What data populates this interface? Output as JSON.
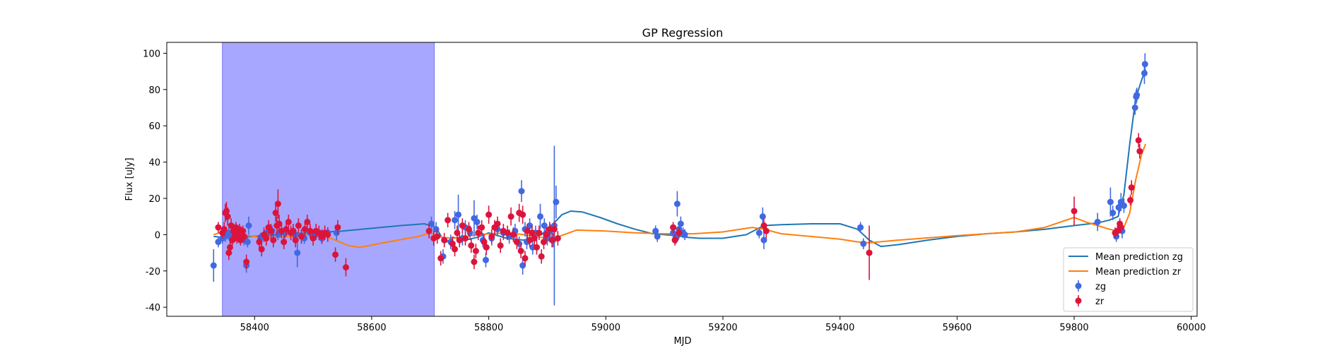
{
  "chart_data": {
    "type": "scatter",
    "title": "GP Regression",
    "xlabel": "MJD",
    "ylabel": "Flux [uJy]",
    "xlim": [
      58250,
      60010
    ],
    "ylim": [
      -45,
      106
    ],
    "xticks": [
      58400,
      58600,
      58800,
      59000,
      59200,
      59400,
      59600,
      59800,
      60000
    ],
    "yticks": [
      -40,
      -20,
      0,
      20,
      40,
      60,
      80,
      100
    ],
    "shaded_span": {
      "x0": 58345,
      "x1": 58707,
      "color": "#a7a7ff"
    },
    "legend_position": "lower right",
    "lines": [
      {
        "name": "Mean prediction zg",
        "color": "#1f77b4",
        "x": [
          58330,
          58345,
          58380,
          58420,
          58460,
          58500,
          58550,
          58600,
          58650,
          58690,
          58710,
          58725,
          58740,
          58760,
          58780,
          58800,
          58830,
          58860,
          58890,
          58910,
          58925,
          58940,
          58960,
          58990,
          59020,
          59050,
          59080,
          59100,
          59120,
          59140,
          59160,
          59200,
          59240,
          59270,
          59300,
          59350,
          59400,
          59430,
          59450,
          59470,
          59500,
          59550,
          59600,
          59650,
          59700,
          59750,
          59800,
          59840,
          59860,
          59875,
          59885,
          59895,
          59905,
          59915,
          59922
        ],
        "y": [
          -1,
          -1.5,
          -1.2,
          -0.5,
          0.5,
          1,
          2,
          3.5,
          5,
          6,
          4,
          -4.5,
          -1.5,
          -3,
          -1.5,
          1,
          -2,
          -3,
          0,
          6,
          11,
          13,
          12.5,
          9.5,
          6,
          3,
          0.5,
          0,
          -0.5,
          -1.5,
          -2,
          -2,
          0,
          5,
          5.5,
          6,
          6,
          3,
          -3,
          -6.5,
          -5.5,
          -3,
          -1,
          0.5,
          1.5,
          3,
          5,
          6.5,
          8,
          10,
          22,
          50,
          75,
          85,
          91
        ]
      },
      {
        "name": "Mean prediction zr",
        "color": "#ff7f0e",
        "x": [
          58330,
          58345,
          58380,
          58420,
          58460,
          58500,
          58530,
          58560,
          58580,
          58620,
          58680,
          58700,
          58720,
          58740,
          58770,
          58800,
          58830,
          58860,
          58900,
          58920,
          58950,
          59000,
          59050,
          59100,
          59150,
          59200,
          59250,
          59270,
          59300,
          59350,
          59400,
          59430,
          59450,
          59500,
          59600,
          59700,
          59750,
          59800,
          59820,
          59840,
          59860,
          59875,
          59885,
          59895,
          59905,
          59915,
          59922
        ],
        "y": [
          0,
          1.5,
          0,
          -2,
          -1,
          0,
          -2,
          -6,
          -7,
          -4.5,
          -1,
          1,
          -1.5,
          -2,
          -0.5,
          0.5,
          1,
          0,
          -2,
          -1,
          2.5,
          2,
          1,
          0.5,
          0.5,
          1.5,
          4,
          3,
          0.5,
          -1,
          -2.5,
          -4,
          -4.5,
          -3,
          -0.5,
          1.5,
          4,
          9.5,
          7,
          5,
          3,
          2,
          4,
          12,
          30,
          44,
          50
        ]
      }
    ],
    "series": [
      {
        "name": "zg",
        "color": "#4169e1",
        "points": [
          [
            58330,
            -17,
            9
          ],
          [
            58338,
            -4,
            3
          ],
          [
            58345,
            -2,
            3
          ],
          [
            58350,
            -1,
            3
          ],
          [
            58356,
            1,
            3
          ],
          [
            58360,
            -2,
            3
          ],
          [
            58366,
            0,
            3
          ],
          [
            58372,
            -1,
            3
          ],
          [
            58378,
            0,
            3
          ],
          [
            58382,
            -3,
            3
          ],
          [
            58386,
            -17,
            4
          ],
          [
            58388,
            -4,
            3
          ],
          [
            58390,
            5,
            5
          ],
          [
            58410,
            -2,
            3
          ],
          [
            58420,
            1,
            3
          ],
          [
            58430,
            2,
            3
          ],
          [
            58440,
            0,
            3
          ],
          [
            58452,
            1,
            3
          ],
          [
            58470,
            0,
            3
          ],
          [
            58473,
            -10,
            8
          ],
          [
            58485,
            -2,
            3
          ],
          [
            58495,
            1,
            3
          ],
          [
            58505,
            0,
            3
          ],
          [
            58515,
            -2,
            3
          ],
          [
            58525,
            1,
            3
          ],
          [
            58540,
            1,
            4
          ],
          [
            58702,
            6,
            4
          ],
          [
            58710,
            3,
            4
          ],
          [
            58722,
            -12,
            4
          ],
          [
            58735,
            -4,
            4
          ],
          [
            58742,
            8,
            5
          ],
          [
            58748,
            11,
            11
          ],
          [
            58755,
            -2,
            4
          ],
          [
            58760,
            4,
            4
          ],
          [
            58768,
            1,
            4
          ],
          [
            58775,
            9,
            10
          ],
          [
            58780,
            7,
            4
          ],
          [
            58790,
            -3,
            4
          ],
          [
            58795,
            -14,
            4
          ],
          [
            58805,
            -2,
            4
          ],
          [
            58815,
            3,
            4
          ],
          [
            58825,
            1,
            4
          ],
          [
            58835,
            -1,
            4
          ],
          [
            58845,
            2,
            4
          ],
          [
            58852,
            -5,
            4
          ],
          [
            58856,
            24,
            6
          ],
          [
            58858,
            -17,
            5
          ],
          [
            58862,
            3,
            4
          ],
          [
            58865,
            -4,
            4
          ],
          [
            58870,
            5,
            4
          ],
          [
            58875,
            -7,
            4
          ],
          [
            58880,
            1,
            4
          ],
          [
            58888,
            10,
            7
          ],
          [
            58895,
            5,
            4
          ],
          [
            58900,
            -2,
            4
          ],
          [
            58905,
            2,
            4
          ],
          [
            58910,
            -3,
            4
          ],
          [
            58912,
            5,
            44
          ],
          [
            58915,
            18,
            9
          ],
          [
            59085,
            2,
            3
          ],
          [
            59088,
            -1,
            3
          ],
          [
            59115,
            1,
            3
          ],
          [
            59120,
            -2,
            3
          ],
          [
            59122,
            17,
            7
          ],
          [
            59125,
            3,
            3
          ],
          [
            59128,
            6,
            4
          ],
          [
            59132,
            1,
            3
          ],
          [
            59135,
            0,
            3
          ],
          [
            59262,
            1,
            3
          ],
          [
            59268,
            10,
            5
          ],
          [
            59270,
            -3,
            5
          ],
          [
            59435,
            4,
            3
          ],
          [
            59440,
            -5,
            3
          ],
          [
            59840,
            7,
            5
          ],
          [
            59862,
            18,
            8
          ],
          [
            59866,
            12,
            4
          ],
          [
            59872,
            -1,
            3
          ],
          [
            59876,
            15,
            4
          ],
          [
            59880,
            18,
            5
          ],
          [
            59882,
            2,
            4
          ],
          [
            59885,
            16,
            4
          ],
          [
            59904,
            70,
            4
          ],
          [
            59906,
            76,
            4
          ],
          [
            59907,
            77,
            4
          ],
          [
            59920,
            89,
            6
          ],
          [
            59921,
            94,
            6
          ]
        ]
      },
      {
        "name": "zr",
        "color": "#dc143c",
        "points": [
          [
            58338,
            4,
            3
          ],
          [
            58345,
            1,
            3
          ],
          [
            58348,
            3,
            4
          ],
          [
            58350,
            12,
            5
          ],
          [
            58352,
            13,
            5
          ],
          [
            58354,
            10,
            5
          ],
          [
            58356,
            -10,
            4
          ],
          [
            58358,
            -7,
            4
          ],
          [
            58360,
            5,
            4
          ],
          [
            58362,
            -3,
            3
          ],
          [
            58364,
            2,
            3
          ],
          [
            58366,
            -1,
            3
          ],
          [
            58368,
            4,
            3
          ],
          [
            58370,
            -2,
            3
          ],
          [
            58372,
            1,
            3
          ],
          [
            58374,
            3,
            3
          ],
          [
            58376,
            -3,
            3
          ],
          [
            58378,
            0,
            3
          ],
          [
            58380,
            2,
            3
          ],
          [
            58382,
            -1,
            3
          ],
          [
            58386,
            -15,
            4
          ],
          [
            58408,
            -4,
            4
          ],
          [
            58412,
            -8,
            4
          ],
          [
            58416,
            0,
            4
          ],
          [
            58420,
            -2,
            4
          ],
          [
            58424,
            4,
            4
          ],
          [
            58428,
            2,
            4
          ],
          [
            58432,
            -3,
            4
          ],
          [
            58436,
            12,
            5
          ],
          [
            58438,
            5,
            5
          ],
          [
            58440,
            17,
            8
          ],
          [
            58442,
            6,
            5
          ],
          [
            58446,
            2,
            4
          ],
          [
            58450,
            -4,
            4
          ],
          [
            58454,
            3,
            4
          ],
          [
            58458,
            7,
            4
          ],
          [
            58462,
            1,
            4
          ],
          [
            58466,
            2,
            4
          ],
          [
            58470,
            -3,
            4
          ],
          [
            58475,
            5,
            4
          ],
          [
            58480,
            -1,
            4
          ],
          [
            58486,
            3,
            4
          ],
          [
            58490,
            7,
            4
          ],
          [
            58495,
            2,
            4
          ],
          [
            58500,
            -2,
            4
          ],
          [
            58505,
            2,
            4
          ],
          [
            58510,
            1,
            4
          ],
          [
            58515,
            -1,
            4
          ],
          [
            58520,
            1,
            4
          ],
          [
            58525,
            0,
            4
          ],
          [
            58538,
            -11,
            4
          ],
          [
            58542,
            4,
            4
          ],
          [
            58556,
            -18,
            5
          ],
          [
            58698,
            2,
            4
          ],
          [
            58706,
            -2,
            4
          ],
          [
            58712,
            -1,
            4
          ],
          [
            58718,
            -13,
            4
          ],
          [
            58724,
            -3,
            4
          ],
          [
            58730,
            8,
            4
          ],
          [
            58738,
            -5,
            4
          ],
          [
            58742,
            -8,
            4
          ],
          [
            58746,
            1,
            4
          ],
          [
            58750,
            -3,
            4
          ],
          [
            58755,
            5,
            4
          ],
          [
            58760,
            -2,
            4
          ],
          [
            58766,
            3,
            4
          ],
          [
            58770,
            -6,
            4
          ],
          [
            58775,
            -15,
            4
          ],
          [
            58778,
            -9,
            4
          ],
          [
            58782,
            1,
            4
          ],
          [
            58788,
            4,
            4
          ],
          [
            58792,
            -4,
            4
          ],
          [
            58796,
            -7,
            4
          ],
          [
            58800,
            11,
            5
          ],
          [
            58805,
            -1,
            4
          ],
          [
            58810,
            4,
            4
          ],
          [
            58815,
            6,
            4
          ],
          [
            58820,
            -6,
            4
          ],
          [
            58825,
            2,
            4
          ],
          [
            58832,
            1,
            4
          ],
          [
            58838,
            10,
            5
          ],
          [
            58842,
            0,
            4
          ],
          [
            58848,
            -4,
            4
          ],
          [
            58852,
            12,
            5
          ],
          [
            58855,
            -9,
            4
          ],
          [
            58858,
            11,
            5
          ],
          [
            58862,
            -13,
            4
          ],
          [
            58866,
            2,
            4
          ],
          [
            58870,
            -3,
            4
          ],
          [
            58874,
            1,
            4
          ],
          [
            58878,
            -2,
            4
          ],
          [
            58882,
            -7,
            4
          ],
          [
            58886,
            1,
            4
          ],
          [
            58890,
            -12,
            4
          ],
          [
            58894,
            -4,
            4
          ],
          [
            58898,
            0,
            4
          ],
          [
            58904,
            3,
            4
          ],
          [
            58908,
            -3,
            4
          ],
          [
            58912,
            3,
            4
          ],
          [
            58918,
            -2,
            4
          ],
          [
            59115,
            4,
            3
          ],
          [
            59118,
            -3,
            3
          ],
          [
            59125,
            1,
            3
          ],
          [
            59270,
            5,
            4
          ],
          [
            59274,
            2,
            4
          ],
          [
            59450,
            -10,
            15
          ],
          [
            59800,
            13,
            8
          ],
          [
            59870,
            1,
            3
          ],
          [
            59874,
            2,
            3
          ],
          [
            59878,
            6,
            3
          ],
          [
            59880,
            4,
            3
          ],
          [
            59896,
            19,
            3
          ],
          [
            59898,
            26,
            4
          ],
          [
            59910,
            52,
            4
          ],
          [
            59912,
            46,
            4
          ]
        ]
      }
    ]
  }
}
